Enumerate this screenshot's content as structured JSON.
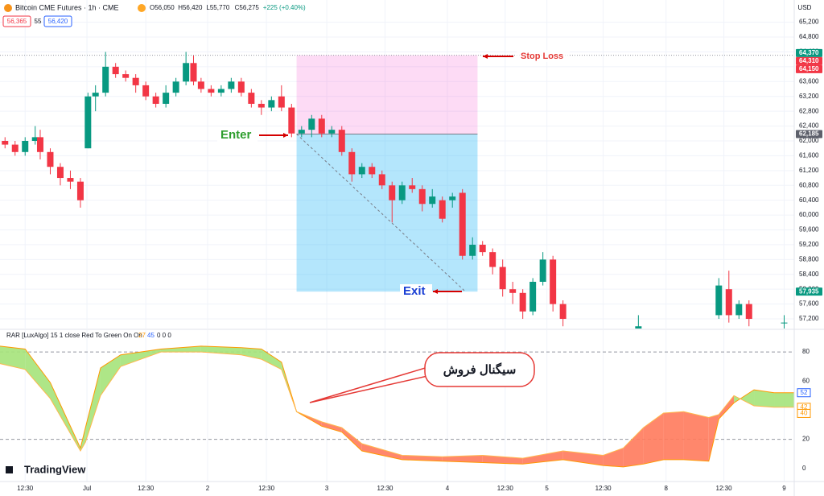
{
  "header": {
    "title": "Bitcoin CME Futures · 1h · CME",
    "ohlc": [
      "O56,050",
      "H56,420",
      "L55,770",
      "C56,275",
      "+225 (+0.40%)"
    ],
    "boxes": [
      "56,365",
      "55",
      "56,420"
    ],
    "currency": "USD",
    "logo": "TradingView"
  },
  "chart_data": [
    {
      "type": "candlestick",
      "up_color": "#089981",
      "down_color": "#f23645",
      "grid": true,
      "xlim": [
        0,
        158
      ],
      "ylim": [
        56940,
        65800
      ],
      "xticks": [
        {
          "value": 5,
          "label": "12:30"
        },
        {
          "value": 17.3,
          "label": "Jul"
        },
        {
          "value": 29,
          "label": "12:30"
        },
        {
          "value": 41.3,
          "label": "2"
        },
        {
          "value": 53,
          "label": "12:30"
        },
        {
          "value": 65,
          "label": "3"
        },
        {
          "value": 76.6,
          "label": "12:30"
        },
        {
          "value": 89,
          "label": "4"
        },
        {
          "value": 100.5,
          "label": "12:30"
        },
        {
          "value": 108.8,
          "label": "5"
        },
        {
          "value": 120,
          "label": "12:30"
        },
        {
          "value": 132.5,
          "label": "8"
        },
        {
          "value": 144,
          "label": "12:30"
        },
        {
          "value": 156,
          "label": "9"
        }
      ],
      "yticks": [
        {
          "value": 57200,
          "label": "57,200"
        },
        {
          "value": 57600,
          "label": "57,600"
        },
        {
          "value": 58000,
          "label": "58,000"
        },
        {
          "value": 58400,
          "label": "58,400"
        },
        {
          "value": 58800,
          "label": "58,800"
        },
        {
          "value": 59200,
          "label": "59,200"
        },
        {
          "value": 59600,
          "label": "59,600"
        },
        {
          "value": 60000,
          "label": "60,000"
        },
        {
          "value": 60400,
          "label": "60,400"
        },
        {
          "value": 60800,
          "label": "60,800"
        },
        {
          "value": 61200,
          "label": "61,200"
        },
        {
          "value": 61600,
          "label": "61,600"
        },
        {
          "value": 62000,
          "label": "62,000"
        },
        {
          "value": 62400,
          "label": "62,400"
        },
        {
          "value": 62800,
          "label": "62,800"
        },
        {
          "value": 63200,
          "label": "63,200"
        },
        {
          "value": 63600,
          "label": "63,600"
        },
        {
          "value": 64000,
          "label": "64,000"
        },
        {
          "value": 64400,
          "label": "64,400"
        },
        {
          "value": 64800,
          "label": "64,800"
        },
        {
          "value": 65200,
          "label": "65,200"
        }
      ],
      "x": [
        1,
        3,
        5,
        7,
        8,
        10,
        12,
        14,
        16,
        17.5,
        19,
        21,
        23,
        25,
        27,
        29,
        31,
        33,
        35,
        37,
        38.5,
        40,
        42,
        44,
        46,
        48,
        50,
        52,
        54,
        56,
        58,
        60,
        62,
        64,
        66,
        68,
        70,
        72,
        74,
        76,
        78,
        80,
        82,
        84,
        86,
        88,
        90,
        92,
        94,
        96,
        98,
        100,
        102,
        104,
        106,
        108,
        110,
        112,
        127,
        143,
        145,
        147,
        149,
        156
      ],
      "open": [
        62000,
        61900,
        61700,
        62000,
        62100,
        61700,
        61300,
        61000,
        60900,
        61800,
        63200,
        63300,
        64000,
        63800,
        63700,
        63500,
        63200,
        63000,
        63300,
        63600,
        64100,
        63600,
        63400,
        63300,
        63400,
        63600,
        63300,
        63000,
        62900,
        63200,
        62900,
        62200,
        62300,
        62600,
        62200,
        62300,
        61700,
        61100,
        61300,
        61100,
        60800,
        60400,
        60800,
        60700,
        60300,
        60400,
        60400,
        60600,
        58900,
        59200,
        59000,
        58600,
        58000,
        57900,
        57400,
        58200,
        58800,
        57600,
        56900,
        57300,
        58000,
        57300,
        57600,
        57100
      ],
      "high": [
        62100,
        62000,
        62100,
        62400,
        62300,
        61800,
        61400,
        61200,
        61000,
        63300,
        63500,
        64400,
        64100,
        63900,
        63800,
        63600,
        63300,
        63500,
        63700,
        64400,
        64300,
        63700,
        63500,
        63500,
        63700,
        63700,
        63400,
        63100,
        63200,
        63500,
        63000,
        62400,
        62700,
        62700,
        62400,
        62400,
        61800,
        61400,
        61400,
        61200,
        60900,
        60900,
        61000,
        60800,
        60700,
        60500,
        60600,
        60700,
        59400,
        59300,
        59100,
        58800,
        58200,
        58000,
        58300,
        59000,
        58900,
        57700,
        57300,
        58300,
        58500,
        57700,
        57700,
        57300
      ],
      "low": [
        61800,
        61600,
        61600,
        61900,
        61500,
        61100,
        60800,
        60700,
        60200,
        61800,
        62800,
        63200,
        63700,
        63600,
        63300,
        63100,
        62900,
        62900,
        63200,
        63500,
        63500,
        63300,
        63200,
        63200,
        63300,
        63200,
        62900,
        62700,
        62800,
        62800,
        62100,
        62100,
        62100,
        62100,
        62100,
        61600,
        60900,
        61000,
        61000,
        60700,
        59800,
        60300,
        60600,
        60100,
        60200,
        59800,
        60200,
        58800,
        58800,
        58900,
        58400,
        57800,
        57600,
        57200,
        57300,
        58100,
        57400,
        57000,
        56800,
        57200,
        57100,
        57200,
        57000,
        56900
      ],
      "close": [
        61900,
        61700,
        62000,
        62100,
        61700,
        61300,
        61000,
        60900,
        60400,
        63200,
        63300,
        64000,
        63800,
        63700,
        63500,
        63200,
        63000,
        63300,
        63600,
        64100,
        63600,
        63400,
        63300,
        63400,
        63600,
        63300,
        63000,
        62900,
        63100,
        62900,
        62200,
        62300,
        62600,
        62200,
        62300,
        61700,
        61100,
        61300,
        61100,
        60800,
        60400,
        60800,
        60700,
        60300,
        60500,
        59900,
        60500,
        58900,
        59200,
        59000,
        58600,
        58000,
        57900,
        57400,
        58200,
        58800,
        57600,
        57200,
        57000,
        58100,
        57300,
        57600,
        57200,
        57100
      ],
      "position": {
        "x": [
          59,
          95
        ]
      },
      "price_labels": [
        {
          "value": 64370,
          "label": "64,370",
          "color": "#089981"
        },
        {
          "value": 64310,
          "label": "64,310",
          "color": "#f23645"
        },
        {
          "value": 64150,
          "label": "64,150",
          "color": "#f23645"
        },
        {
          "value": 62185,
          "label": "62,185",
          "color": "#5d606b"
        },
        {
          "value": 57935,
          "label": "57,935",
          "color": "#089981"
        }
      ],
      "annotations": {
        "stop_loss": "Stop Loss",
        "enter": "Enter",
        "exit": "Exit",
        "signal": "سیگنال فروش"
      }
    },
    {
      "type": "line",
      "legend": [
        "RAR [LuxAlgo] 15 1 close Red To Green On On",
        "27",
        "45",
        "0 0 0"
      ],
      "ylim": [
        -9,
        95
      ],
      "yticks": [
        0,
        20,
        40,
        60,
        80
      ],
      "dashed_levels": [
        20,
        80
      ],
      "x": [
        0,
        5,
        10,
        16,
        17,
        20,
        24,
        32,
        40,
        48,
        52,
        56,
        59,
        64,
        68,
        72,
        80,
        88,
        96,
        104,
        112,
        120,
        124,
        128,
        132,
        136,
        141,
        143,
        146,
        150,
        154,
        158
      ],
      "series": [
        {
          "color": "#ff9800",
          "values": [
            84,
            82,
            59,
            14,
            28,
            69,
            78,
            82,
            84,
            83,
            82,
            73,
            39,
            29,
            25,
            12,
            6,
            5,
            4,
            3,
            6,
            2,
            1,
            3,
            6,
            6,
            5,
            34,
            45,
            54,
            52,
            52
          ]
        },
        {
          "color": "#ffb74d",
          "values": [
            72,
            68,
            48,
            12,
            18,
            50,
            70,
            80,
            80,
            78,
            75,
            68,
            39,
            32,
            28,
            17,
            9,
            8,
            9,
            7,
            12,
            9,
            14,
            28,
            38,
            39,
            35,
            37,
            50,
            43,
            42,
            42
          ]
        }
      ],
      "fill_up": "#a5e37a",
      "fill_down": "#ff7a5c",
      "right_labels": [
        {
          "value": 52,
          "color": "#2962ff"
        },
        {
          "value": 42,
          "color": "#ff9800"
        },
        {
          "value": 40,
          "color": "#ff9800"
        }
      ]
    }
  ]
}
